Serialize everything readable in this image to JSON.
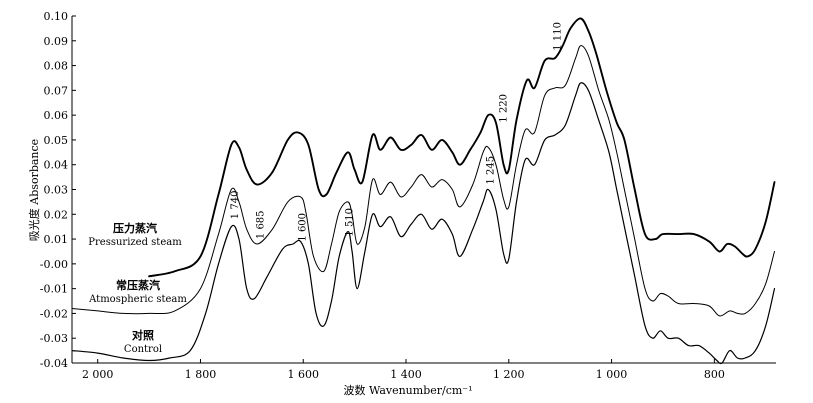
{
  "chart_data": {
    "type": "line",
    "title": "",
    "xlabel": "波数 Wavenumber/cm⁻¹",
    "ylabel": "吸光度 Absorbance",
    "xlim": [
      2050,
      680
    ],
    "ylim": [
      -0.04,
      0.1
    ],
    "x_reversed": true,
    "grid": false,
    "xticks": [
      {
        "value": 2000,
        "label": "2 000"
      },
      {
        "value": 1800,
        "label": "1 800"
      },
      {
        "value": 1600,
        "label": "1 600"
      },
      {
        "value": 1400,
        "label": "1 400"
      },
      {
        "value": 1200,
        "label": "1 200"
      },
      {
        "value": 1000,
        "label": "1 000"
      },
      {
        "value": 800,
        "label": "800"
      }
    ],
    "yticks": [
      {
        "value": 0.1,
        "label": "0.10"
      },
      {
        "value": 0.09,
        "label": "0.09"
      },
      {
        "value": 0.08,
        "label": "0.08"
      },
      {
        "value": 0.07,
        "label": "0.07"
      },
      {
        "value": 0.06,
        "label": "0.06"
      },
      {
        "value": 0.05,
        "label": "0.05"
      },
      {
        "value": 0.04,
        "label": "0.04"
      },
      {
        "value": 0.03,
        "label": "0.03"
      },
      {
        "value": 0.02,
        "label": "0.02"
      },
      {
        "value": 0.01,
        "label": "0.01"
      },
      {
        "value": 0.0,
        "label": "-0.00"
      },
      {
        "value": -0.01,
        "label": "-0.01"
      },
      {
        "value": -0.02,
        "label": "-0.02"
      },
      {
        "value": -0.03,
        "label": "-0.03"
      },
      {
        "value": -0.04,
        "label": "-0.04"
      }
    ],
    "series": [
      {
        "name": "压力蒸汽 Pressurized steam",
        "name_cn": "压力蒸汽",
        "name_en": "Pressurized steam",
        "color": "#000000",
        "width": 1.9,
        "points": [
          [
            1900,
            -0.005
          ],
          [
            1850,
            -0.003
          ],
          [
            1800,
            0.003
          ],
          [
            1765,
            0.028
          ],
          [
            1740,
            0.048
          ],
          [
            1725,
            0.047
          ],
          [
            1710,
            0.038
          ],
          [
            1690,
            0.032
          ],
          [
            1660,
            0.037
          ],
          [
            1630,
            0.05
          ],
          [
            1610,
            0.053
          ],
          [
            1590,
            0.048
          ],
          [
            1570,
            0.03
          ],
          [
            1555,
            0.028
          ],
          [
            1535,
            0.037
          ],
          [
            1513,
            0.045
          ],
          [
            1500,
            0.038
          ],
          [
            1485,
            0.033
          ],
          [
            1465,
            0.052
          ],
          [
            1450,
            0.046
          ],
          [
            1430,
            0.051
          ],
          [
            1410,
            0.046
          ],
          [
            1390,
            0.048
          ],
          [
            1370,
            0.052
          ],
          [
            1350,
            0.046
          ],
          [
            1330,
            0.05
          ],
          [
            1310,
            0.045
          ],
          [
            1295,
            0.04
          ],
          [
            1275,
            0.046
          ],
          [
            1255,
            0.053
          ],
          [
            1240,
            0.06
          ],
          [
            1225,
            0.057
          ],
          [
            1210,
            0.04
          ],
          [
            1200,
            0.038
          ],
          [
            1185,
            0.058
          ],
          [
            1165,
            0.074
          ],
          [
            1150,
            0.071
          ],
          [
            1130,
            0.082
          ],
          [
            1110,
            0.083
          ],
          [
            1095,
            0.088
          ],
          [
            1080,
            0.095
          ],
          [
            1060,
            0.099
          ],
          [
            1045,
            0.094
          ],
          [
            1030,
            0.085
          ],
          [
            1010,
            0.07
          ],
          [
            990,
            0.057
          ],
          [
            975,
            0.05
          ],
          [
            955,
            0.03
          ],
          [
            935,
            0.012
          ],
          [
            915,
            0.01
          ],
          [
            900,
            0.012
          ],
          [
            870,
            0.012
          ],
          [
            840,
            0.012
          ],
          [
            810,
            0.009
          ],
          [
            790,
            0.005
          ],
          [
            775,
            0.008
          ],
          [
            760,
            0.007
          ],
          [
            745,
            0.004
          ],
          [
            735,
            0.003
          ],
          [
            720,
            0.006
          ],
          [
            700,
            0.017
          ],
          [
            683,
            0.033
          ]
        ]
      },
      {
        "name": "常压蒸汽 Atmospheric steam",
        "name_cn": "常压蒸汽",
        "name_en": "Atmospheric steam",
        "color": "#000000",
        "width": 1.0,
        "points": [
          [
            2050,
            -0.018
          ],
          [
            2000,
            -0.019
          ],
          [
            1950,
            -0.02
          ],
          [
            1900,
            -0.02
          ],
          [
            1850,
            -0.019
          ],
          [
            1800,
            -0.01
          ],
          [
            1765,
            0.012
          ],
          [
            1740,
            0.03
          ],
          [
            1725,
            0.025
          ],
          [
            1710,
            0.014
          ],
          [
            1690,
            0.008
          ],
          [
            1660,
            0.014
          ],
          [
            1630,
            0.025
          ],
          [
            1605,
            0.027
          ],
          [
            1595,
            0.021
          ],
          [
            1580,
            0.003
          ],
          [
            1560,
            -0.003
          ],
          [
            1545,
            0.008
          ],
          [
            1530,
            0.021
          ],
          [
            1513,
            0.025
          ],
          [
            1505,
            0.02
          ],
          [
            1495,
            0.008
          ],
          [
            1480,
            0.015
          ],
          [
            1465,
            0.034
          ],
          [
            1450,
            0.028
          ],
          [
            1430,
            0.033
          ],
          [
            1410,
            0.027
          ],
          [
            1390,
            0.031
          ],
          [
            1370,
            0.036
          ],
          [
            1350,
            0.031
          ],
          [
            1330,
            0.034
          ],
          [
            1310,
            0.03
          ],
          [
            1295,
            0.023
          ],
          [
            1270,
            0.032
          ],
          [
            1250,
            0.045
          ],
          [
            1240,
            0.047
          ],
          [
            1225,
            0.04
          ],
          [
            1210,
            0.026
          ],
          [
            1200,
            0.023
          ],
          [
            1185,
            0.04
          ],
          [
            1168,
            0.054
          ],
          [
            1150,
            0.053
          ],
          [
            1130,
            0.068
          ],
          [
            1110,
            0.071
          ],
          [
            1090,
            0.072
          ],
          [
            1070,
            0.083
          ],
          [
            1060,
            0.088
          ],
          [
            1045,
            0.084
          ],
          [
            1025,
            0.07
          ],
          [
            1005,
            0.058
          ],
          [
            990,
            0.045
          ],
          [
            975,
            0.03
          ],
          [
            955,
            0.01
          ],
          [
            935,
            -0.01
          ],
          [
            920,
            -0.015
          ],
          [
            905,
            -0.012
          ],
          [
            890,
            -0.013
          ],
          [
            870,
            -0.016
          ],
          [
            840,
            -0.016
          ],
          [
            810,
            -0.017
          ],
          [
            790,
            -0.021
          ],
          [
            770,
            -0.019
          ],
          [
            755,
            -0.02
          ],
          [
            740,
            -0.02
          ],
          [
            720,
            -0.016
          ],
          [
            700,
            -0.008
          ],
          [
            683,
            0.005
          ]
        ]
      },
      {
        "name": "对照 Control",
        "name_cn": "对照",
        "name_en": "Control",
        "color": "#000000",
        "width": 1.2,
        "points": [
          [
            2050,
            -0.035
          ],
          [
            2000,
            -0.036
          ],
          [
            1950,
            -0.038
          ],
          [
            1900,
            -0.039
          ],
          [
            1860,
            -0.038
          ],
          [
            1820,
            -0.035
          ],
          [
            1790,
            -0.02
          ],
          [
            1765,
            0.0
          ],
          [
            1740,
            0.015
          ],
          [
            1725,
            0.01
          ],
          [
            1710,
            -0.01
          ],
          [
            1695,
            -0.014
          ],
          [
            1670,
            -0.005
          ],
          [
            1640,
            0.006
          ],
          [
            1620,
            0.008
          ],
          [
            1605,
            0.009
          ],
          [
            1590,
            0.0
          ],
          [
            1575,
            -0.02
          ],
          [
            1560,
            -0.025
          ],
          [
            1545,
            -0.015
          ],
          [
            1530,
            0.003
          ],
          [
            1513,
            0.013
          ],
          [
            1505,
            0.005
          ],
          [
            1495,
            -0.01
          ],
          [
            1480,
            0.005
          ],
          [
            1465,
            0.02
          ],
          [
            1450,
            0.015
          ],
          [
            1430,
            0.019
          ],
          [
            1410,
            0.011
          ],
          [
            1390,
            0.016
          ],
          [
            1370,
            0.02
          ],
          [
            1350,
            0.014
          ],
          [
            1330,
            0.018
          ],
          [
            1310,
            0.012
          ],
          [
            1295,
            0.003
          ],
          [
            1270,
            0.014
          ],
          [
            1250,
            0.025
          ],
          [
            1240,
            0.03
          ],
          [
            1225,
            0.022
          ],
          [
            1210,
            0.004
          ],
          [
            1200,
            0.002
          ],
          [
            1185,
            0.025
          ],
          [
            1168,
            0.042
          ],
          [
            1150,
            0.04
          ],
          [
            1130,
            0.05
          ],
          [
            1110,
            0.052
          ],
          [
            1090,
            0.056
          ],
          [
            1070,
            0.068
          ],
          [
            1060,
            0.073
          ],
          [
            1045,
            0.07
          ],
          [
            1025,
            0.058
          ],
          [
            1005,
            0.045
          ],
          [
            990,
            0.03
          ],
          [
            975,
            0.015
          ],
          [
            955,
            -0.005
          ],
          [
            935,
            -0.025
          ],
          [
            920,
            -0.03
          ],
          [
            905,
            -0.027
          ],
          [
            890,
            -0.03
          ],
          [
            870,
            -0.03
          ],
          [
            850,
            -0.033
          ],
          [
            830,
            -0.033
          ],
          [
            810,
            -0.036
          ],
          [
            795,
            -0.039
          ],
          [
            785,
            -0.04
          ],
          [
            770,
            -0.035
          ],
          [
            755,
            -0.038
          ],
          [
            740,
            -0.038
          ],
          [
            720,
            -0.035
          ],
          [
            700,
            -0.025
          ],
          [
            683,
            -0.01
          ]
        ]
      }
    ],
    "annotations": [
      {
        "text": "1 740",
        "x": 1735,
        "y": 0.018
      },
      {
        "text": "1 685",
        "x": 1685,
        "y": 0.01
      },
      {
        "text": "1 600",
        "x": 1603,
        "y": 0.009
      },
      {
        "text": "1 510",
        "x": 1512,
        "y": 0.011
      },
      {
        "text": "1 245",
        "x": 1238,
        "y": 0.032
      },
      {
        "text": "1 220",
        "x": 1212,
        "y": 0.057
      },
      {
        "text": "1 110",
        "x": 1107,
        "y": 0.086
      }
    ]
  }
}
